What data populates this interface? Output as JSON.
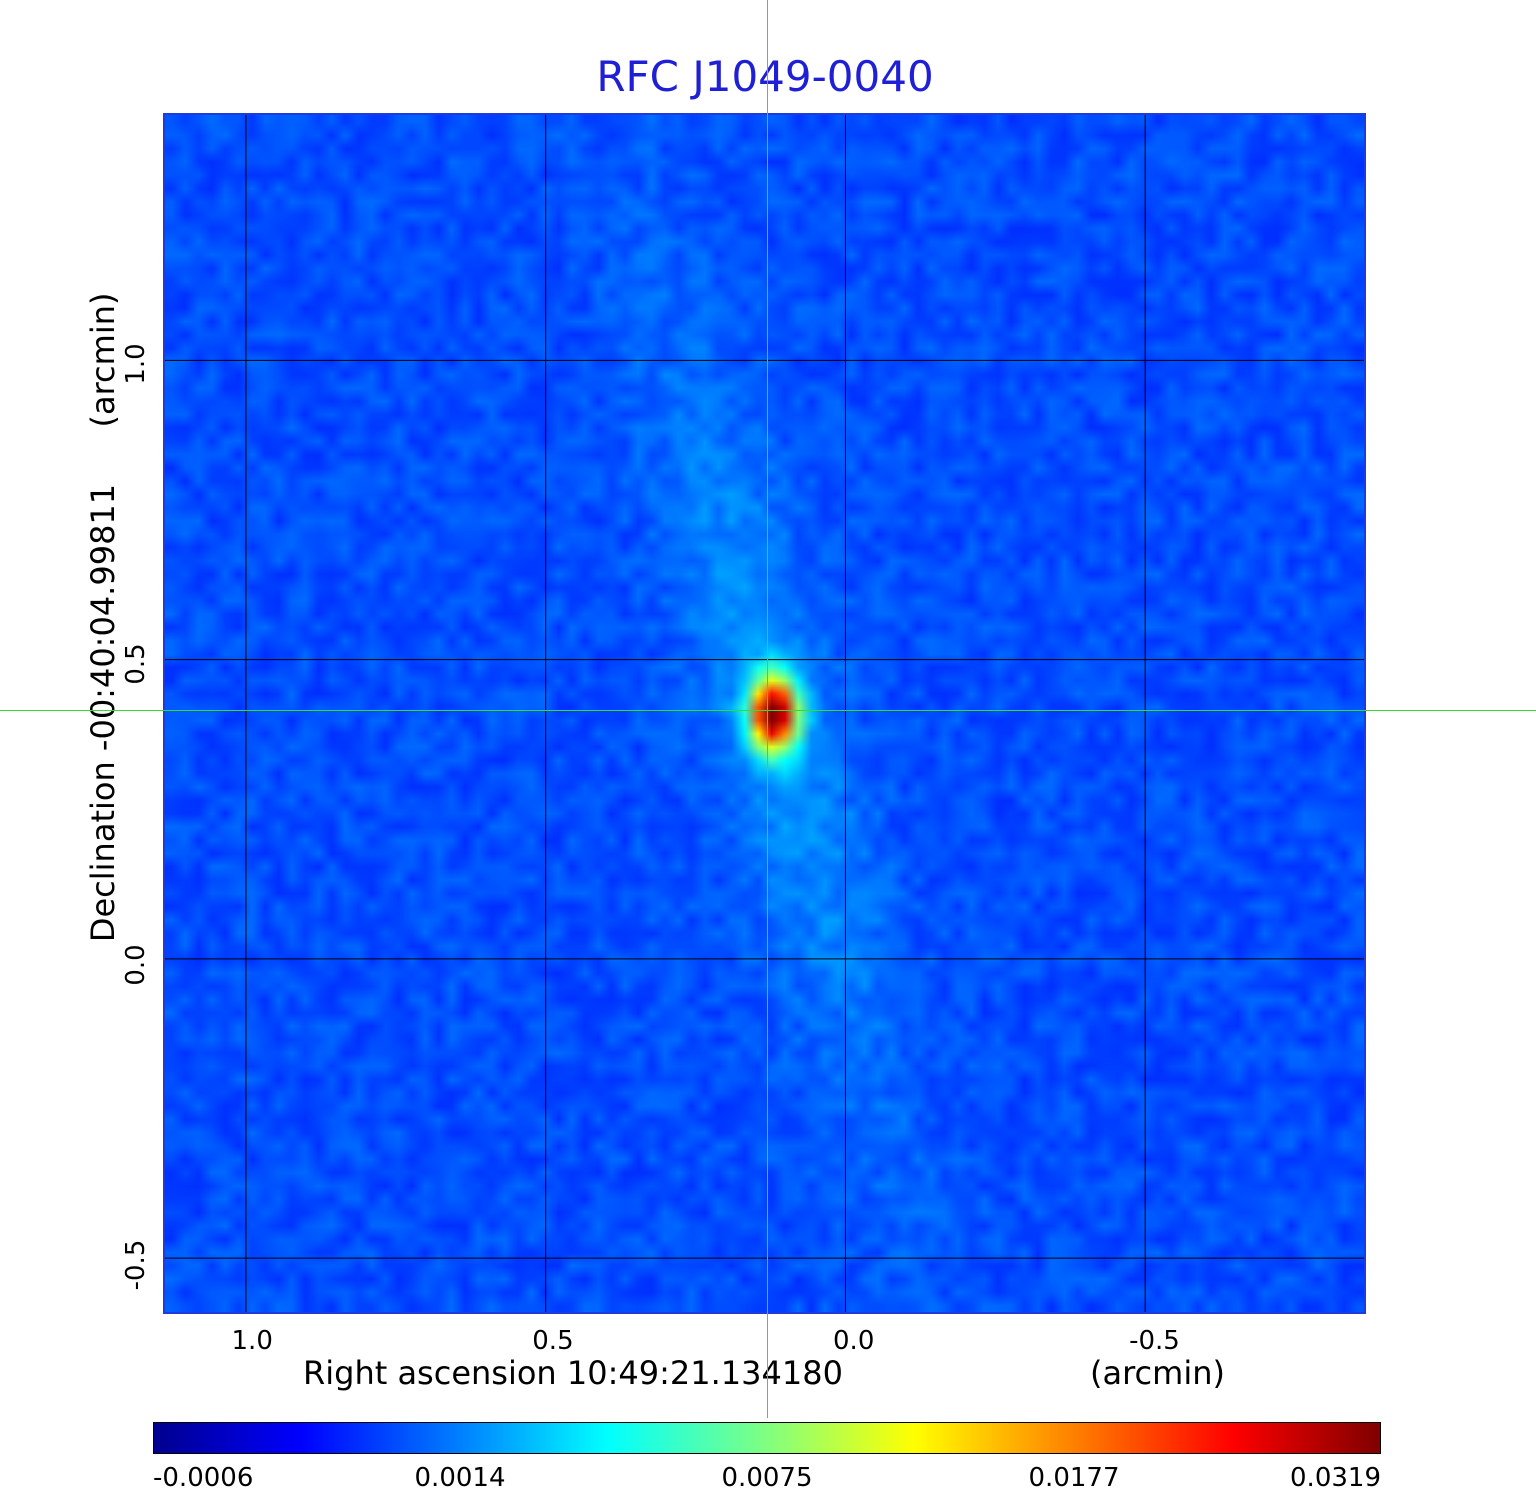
{
  "chart_data": {
    "type": "heatmap",
    "title": "RFC J1049-0040",
    "xlabel": "Right ascension  10:49:21.134180",
    "xunit": "(arcmin)",
    "ylabel": "Declination  -00:40:04.99811",
    "yunit": "(arcmin)",
    "x_ticks": [
      "1.0",
      "0.5",
      "0.0",
      "-0.5"
    ],
    "x_tick_values": [
      1.0,
      0.5,
      0.0,
      -0.5
    ],
    "y_ticks": [
      "1.0",
      "0.5",
      "0.0",
      "-0.5"
    ],
    "y_tick_values": [
      1.0,
      0.5,
      0.0,
      -0.5
    ],
    "xlim": [
      1.135,
      -0.865
    ],
    "ylim": [
      -0.59,
      1.41
    ],
    "grid": true,
    "crosshair": {
      "x": 0.13,
      "y": 0.415
    },
    "colorbar": {
      "ticks": [
        "-0.0006",
        "0.0014",
        "0.0075",
        "0.0177",
        "0.0319"
      ],
      "colormap": "jet"
    },
    "source_peak": {
      "x": 0.12,
      "y": 0.41,
      "value": 0.0319
    },
    "colors": {
      "title": "#1f1fd6",
      "grid": "#000000",
      "crosshair": "#33dd33",
      "background": "#2156f0"
    }
  }
}
